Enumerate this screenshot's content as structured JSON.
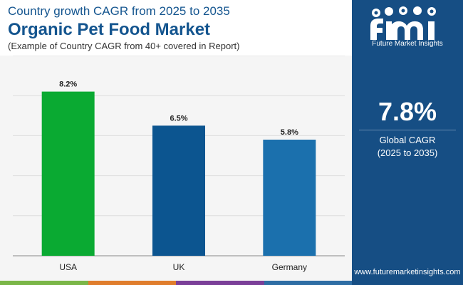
{
  "header": {
    "subtitle": "Country growth CAGR from 2025 to 2035",
    "title": "Organic Pet Food Market",
    "note": "(Example of Country CAGR from 40+ covered in Report)"
  },
  "sidebar": {
    "logo_text": "Future Market Insights",
    "cagr_value": "7.8%",
    "cagr_label": "Global CAGR",
    "cagr_period": "(2025 to 2035)",
    "website": "www.futuremarketinsights.com"
  },
  "colors": {
    "brand_blue": "#14558f",
    "sidebar_blue": "#164e84",
    "usa_bar": "#0aaa32",
    "uk_bar": "#0c5590",
    "germany_bar": "#1b70ad",
    "footer": [
      "#7ab648",
      "#e07d2c",
      "#7a3f98",
      "#2e6da4"
    ]
  },
  "chart_data": {
    "type": "bar",
    "title": "Organic Pet Food Market",
    "categories": [
      "USA",
      "UK",
      "Germany"
    ],
    "values": [
      8.2,
      6.5,
      5.8
    ],
    "labels": [
      "8.2%",
      "6.5%",
      "5.8%"
    ],
    "bar_colors": [
      "#0aaa32",
      "#0c5590",
      "#1b70ad"
    ],
    "ylim": [
      0,
      10
    ],
    "grid": true,
    "xlabel": "",
    "ylabel": ""
  }
}
